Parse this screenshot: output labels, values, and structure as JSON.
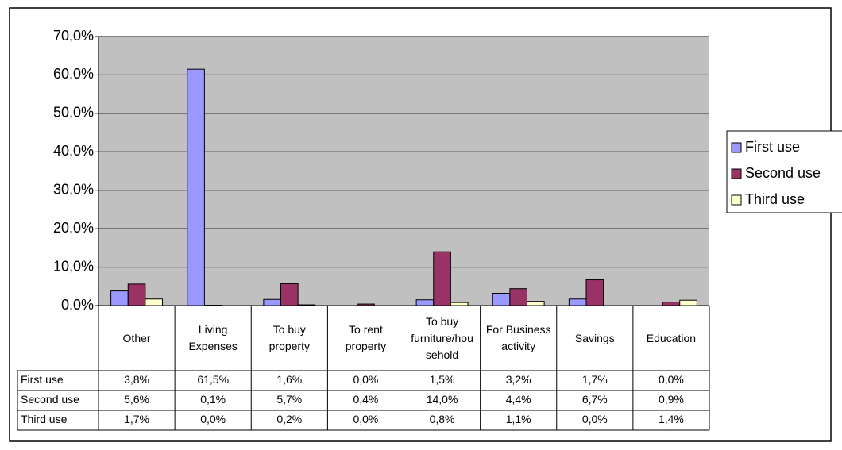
{
  "chart_data": {
    "type": "bar",
    "categories": [
      "Other",
      "Living Expenses",
      "To buy property",
      "To rent property",
      "To buy furniture/household",
      "For Business activity",
      "Savings",
      "Education"
    ],
    "series": [
      {
        "name": "First use",
        "color": "#9999ff",
        "values": [
          3.8,
          61.5,
          1.6,
          0.0,
          1.5,
          3.2,
          1.7,
          0.0
        ],
        "value_labels": [
          "3,8%",
          "61,5%",
          "1,6%",
          "0,0%",
          "1,5%",
          "3,2%",
          "1,7%",
          "0,0%"
        ]
      },
      {
        "name": "Second use",
        "color": "#993366",
        "values": [
          5.6,
          0.1,
          5.7,
          0.4,
          14.0,
          4.4,
          6.7,
          0.9
        ],
        "value_labels": [
          "5,6%",
          "0,1%",
          "5,7%",
          "0,4%",
          "14,0%",
          "4,4%",
          "6,7%",
          "0,9%"
        ]
      },
      {
        "name": "Third use",
        "color": "#ffffcc",
        "values": [
          1.7,
          0.0,
          0.2,
          0.0,
          0.8,
          1.1,
          0.0,
          1.4
        ],
        "value_labels": [
          "1,7%",
          "0,0%",
          "0,2%",
          "0,0%",
          "0,8%",
          "1,1%",
          "0,0%",
          "1,4%"
        ]
      }
    ],
    "ylim": [
      0,
      70
    ],
    "yticks": [
      {
        "value": 0,
        "label": "0,0%"
      },
      {
        "value": 10,
        "label": "10,0%"
      },
      {
        "value": 20,
        "label": "20,0%"
      },
      {
        "value": 30,
        "label": "30,0%"
      },
      {
        "value": 40,
        "label": "40,0%"
      },
      {
        "value": 50,
        "label": "50,0%"
      },
      {
        "value": 60,
        "label": "60,0%"
      },
      {
        "value": 70,
        "label": "70,0%"
      }
    ],
    "grid": true,
    "legend": "right"
  }
}
